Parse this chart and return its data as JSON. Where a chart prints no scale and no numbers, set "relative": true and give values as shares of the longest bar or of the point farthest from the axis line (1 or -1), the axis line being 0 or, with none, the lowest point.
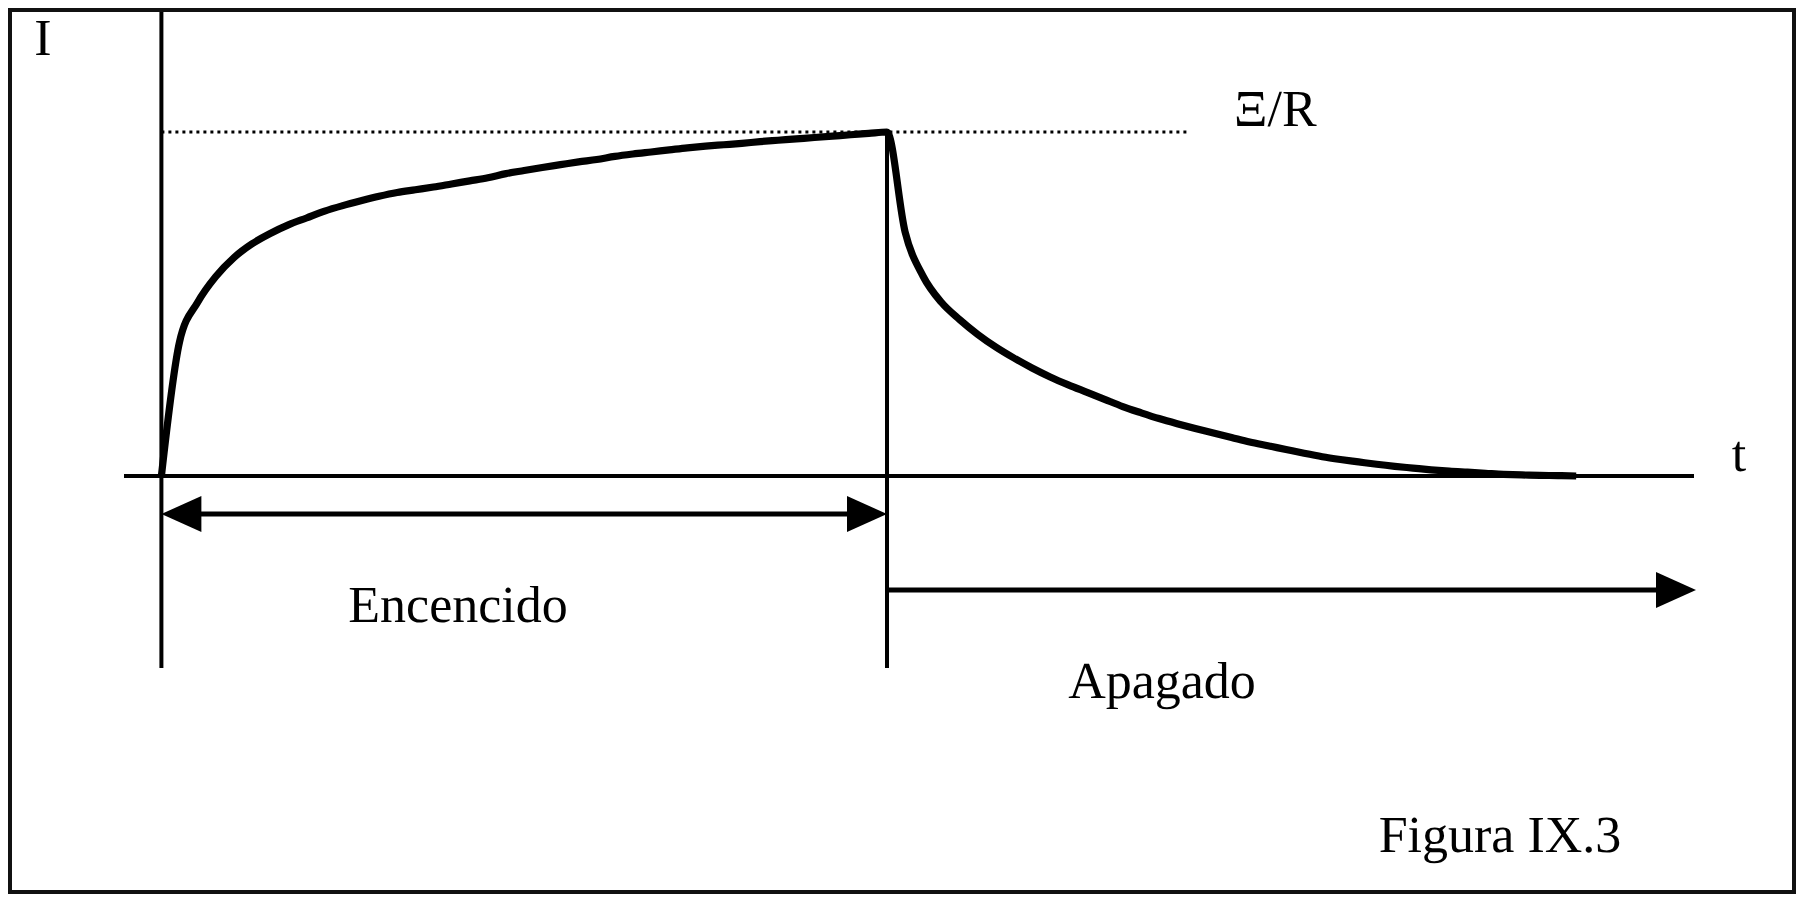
{
  "chart_data": {
    "type": "line",
    "relative": true,
    "ylabel": "I",
    "xlabel": "t",
    "categories": [
      null,
      null,
      null,
      null,
      null,
      null,
      null,
      null,
      null,
      null,
      null,
      null,
      null,
      null,
      null,
      null,
      null,
      null,
      null,
      null,
      null,
      null,
      null,
      null,
      null,
      null,
      null,
      null,
      null,
      null,
      null,
      null,
      null,
      null,
      null,
      null,
      null,
      null,
      null,
      null,
      null,
      null,
      null,
      null,
      null,
      null,
      null,
      null,
      null,
      null,
      null,
      null,
      null,
      null,
      null,
      null,
      null,
      null,
      null,
      null,
      null,
      null,
      null,
      null,
      null,
      null,
      null,
      null,
      null,
      null,
      null,
      null,
      null,
      null,
      null,
      null,
      null,
      null,
      null
    ],
    "series": [
      {
        "color": "#000000",
        "values": [
          0,
          0.39,
          0.505,
          0.58,
          0.635,
          0.675,
          0.705,
          0.73,
          0.75,
          0.77,
          0.786,
          0.8,
          0.813,
          0.824,
          0.832,
          0.84,
          0.849,
          0.858,
          0.867,
          0.879,
          0.888,
          0.897,
          0.905,
          0.913,
          0.92,
          0.929,
          0.936,
          0.942,
          0.948,
          0.954,
          0.959,
          0.963,
          0.967,
          0.972,
          0.976,
          0.98,
          0.984,
          0.988,
          0.992,
          0.996,
          1,
          0.71,
          0.58,
          0.505,
          0.455,
          0.412,
          0.375,
          0.343,
          0.314,
          0.288,
          0.265,
          0.244,
          0.223,
          0.202,
          0.184,
          0.167,
          0.152,
          0.138,
          0.125,
          0.112,
          0.099,
          0.088,
          0.077,
          0.066,
          0.056,
          0.048,
          0.041,
          0.034,
          0.028,
          0.023,
          0.018,
          0.014,
          0.011,
          0.008,
          0.005,
          0.003,
          0.002,
          0.001,
          0
        ]
      }
    ],
    "ref_lines": [
      {
        "axis": "y",
        "value": 1,
        "label": "Ξ/R",
        "line_style": "dotted",
        "color": "#000000"
      }
    ],
    "annotations": [
      "Encencido",
      "Apagado",
      "Figura IX.3"
    ]
  }
}
